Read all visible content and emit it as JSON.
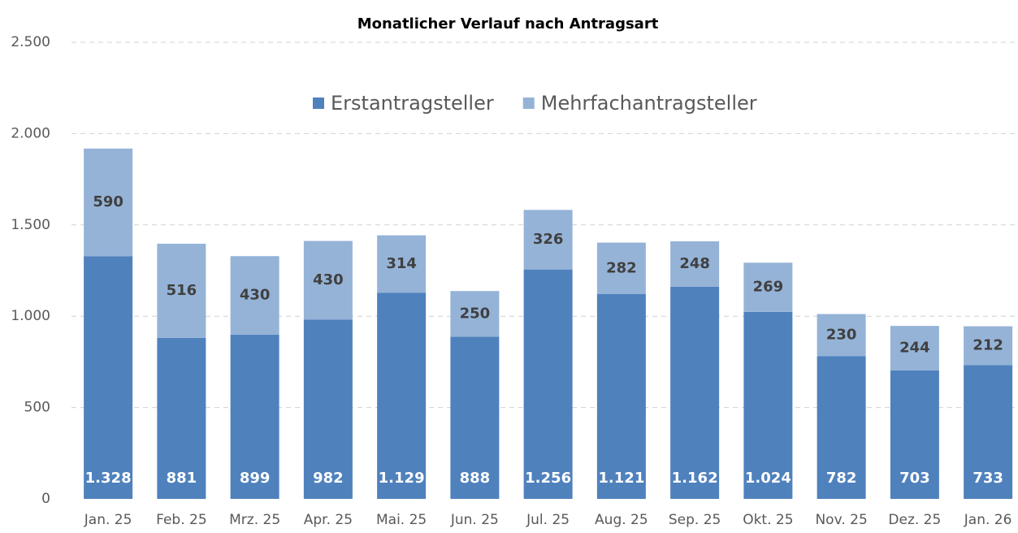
{
  "chart_data": {
    "type": "stacked_bar",
    "title": "Monatlicher Verlauf nach Antragsart",
    "categories": [
      "Jan. 25",
      "Feb. 25",
      "Mrz. 25",
      "Apr. 25",
      "Mai. 25",
      "Jun. 25",
      "Jul. 25",
      "Aug. 25",
      "Sep. 25",
      "Okt. 25",
      "Nov. 25",
      "Dez. 25",
      "Jan. 26"
    ],
    "series": [
      {
        "name": "Erstantragsteller",
        "color": "#4f81bd",
        "values": [
          1328,
          881,
          899,
          982,
          1129,
          888,
          1256,
          1121,
          1162,
          1024,
          782,
          703,
          733
        ],
        "value_labels": [
          "1.328",
          "881",
          "899",
          "982",
          "1.129",
          "888",
          "1.256",
          "1.121",
          "1.162",
          "1.024",
          "782",
          "703",
          "733"
        ]
      },
      {
        "name": "Mehrfachantragsteller",
        "color": "#95b3d7",
        "values": [
          590,
          516,
          430,
          430,
          314,
          250,
          326,
          282,
          248,
          269,
          230,
          244,
          212
        ]
      }
    ],
    "ylim": [
      0,
      2500
    ],
    "yticks": [
      0,
      500,
      {
        "value": 1000,
        "label": "1.000"
      },
      {
        "value": 1500,
        "label": "1.500"
      },
      {
        "value": 2000,
        "label": "2.000"
      },
      {
        "value": 2500,
        "label": "2.500"
      }
    ],
    "grid": true,
    "legend": "top"
  }
}
